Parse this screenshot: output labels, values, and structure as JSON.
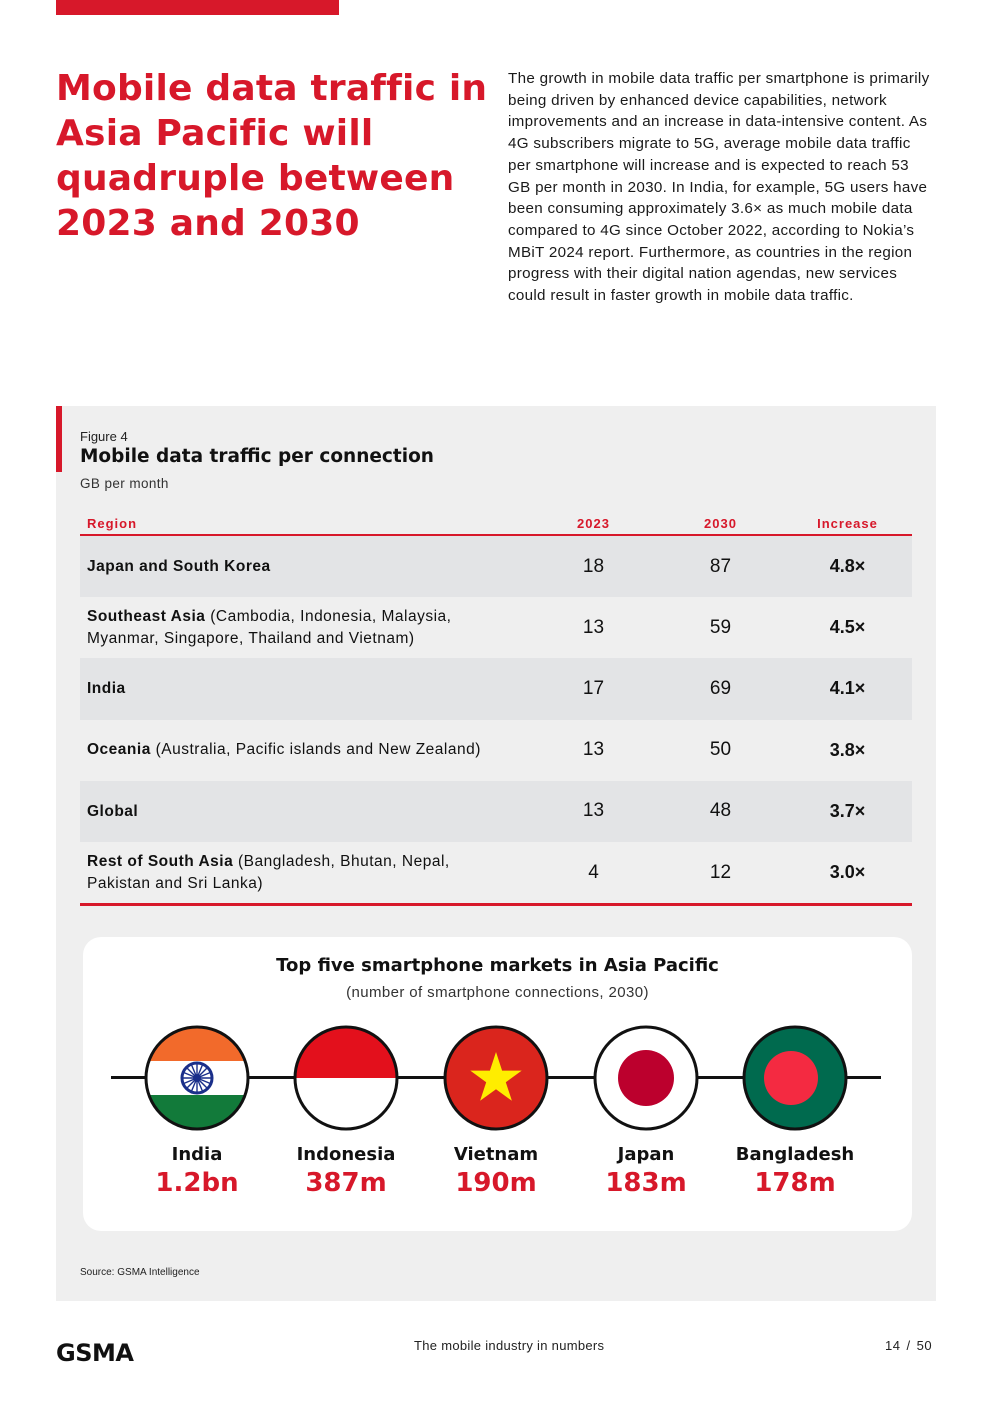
{
  "headline": "Mobile data traffic in Asia Pacific will quadruple between 2023 and 2030",
  "intro": "The growth in mobile data traffic per smartphone is primarily being driven by enhanced device capabilities, network improvements and an increase in data-intensive content. As 4G subscribers migrate to 5G, average mobile data traffic per smartphone will increase and is expected to reach 53 GB per month in 2030. In India, for example, 5G users have been consuming approximately 3.6× as much mobile data compared to 4G since October 2022, according to Nokia’s MBiT 2024 report. Furthermore, as countries in the region progress with their digital nation agendas, new services could result in faster growth in mobile data traffic.",
  "figure": {
    "label": "Figure 4",
    "title": "Mobile data traffic per connection",
    "unit": "GB per month"
  },
  "chart_data": {
    "type": "table",
    "title": "Mobile data traffic per connection",
    "unit": "GB per month",
    "columns": [
      "Region",
      "2023",
      "2030",
      "Increase"
    ],
    "rows": [
      {
        "region": "Japan and South Korea",
        "detail": "",
        "y2023": "18",
        "y2030": "87",
        "increase": "4.8×"
      },
      {
        "region": "Southeast Asia",
        "detail": " (Cambodia, Indonesia, Malaysia, Myanmar, Singapore, Thailand and Vietnam)",
        "y2023": "13",
        "y2030": "59",
        "increase": "4.5×"
      },
      {
        "region": "India",
        "detail": "",
        "y2023": "17",
        "y2030": "69",
        "increase": "4.1×"
      },
      {
        "region": "Oceania",
        "detail": " (Australia, Pacific islands and New Zealand)",
        "y2023": "13",
        "y2030": "50",
        "increase": "3.8×"
      },
      {
        "region": "Global",
        "detail": "",
        "y2023": "13",
        "y2030": "48",
        "increase": "3.7×"
      },
      {
        "region": "Rest of South Asia",
        "detail": " (Bangladesh, Bhutan, Nepal, Pakistan and Sri Lanka)",
        "y2023": "4",
        "y2030": "12",
        "increase": "3.0×"
      }
    ]
  },
  "markets": {
    "title": "Top five smartphone markets in Asia Pacific",
    "subtitle": "(number of smartphone connections, 2030)",
    "items": [
      {
        "name": "India",
        "value": "1.2bn",
        "flag": "india-flag"
      },
      {
        "name": "Indonesia",
        "value": "387m",
        "flag": "indonesia-flag"
      },
      {
        "name": "Vietnam",
        "value": "190m",
        "flag": "vietnam-flag"
      },
      {
        "name": "Japan",
        "value": "183m",
        "flag": "japan-flag"
      },
      {
        "name": "Bangladesh",
        "value": "178m",
        "flag": "bangladesh-flag"
      }
    ]
  },
  "source": "Source: GSMA Intelligence",
  "footer": {
    "logo": "GSMA",
    "center": "The mobile industry in numbers",
    "page_current": "14",
    "page_sep": "/",
    "page_total": "50"
  },
  "colors": {
    "accent": "#d7182a",
    "panel": "#efefef",
    "row_shade": "#e3e4e6"
  }
}
